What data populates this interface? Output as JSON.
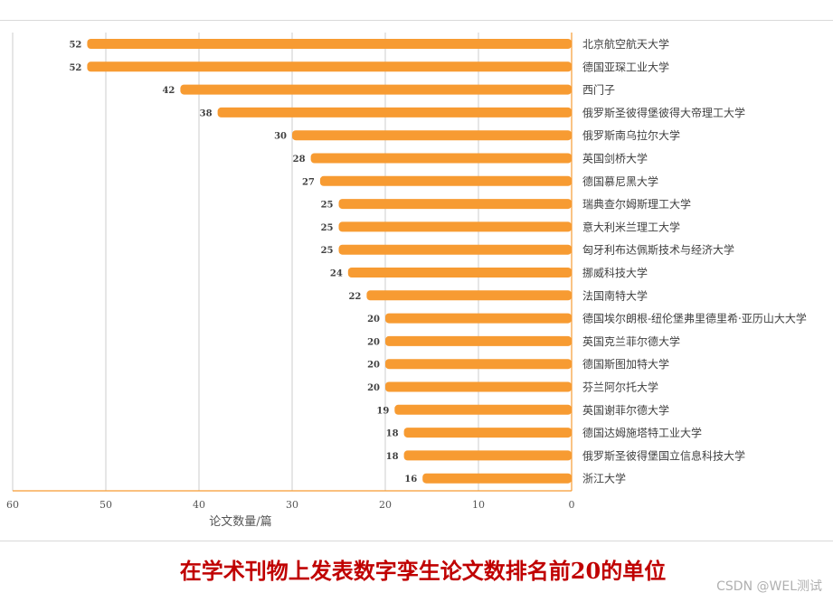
{
  "chart_data": {
    "type": "bar",
    "orientation": "horizontal",
    "title": "在学术刊物上发表数字孪生论文数排名前20的单位",
    "xlabel": "论文数量/篇",
    "ylabel": "",
    "xlim": [
      0,
      60
    ],
    "x_reversed": true,
    "xticks": [
      60,
      50,
      40,
      30,
      20,
      10,
      0
    ],
    "grid": true,
    "bar_color": "#f79b32",
    "categories": [
      "北京航空航天大学",
      "德国亚琛工业大学",
      "西门子",
      "俄罗斯圣彼得堡彼得大帝理工大学",
      "俄罗斯南乌拉尔大学",
      "英国剑桥大学",
      "德国慕尼黑大学",
      "瑞典查尔姆斯理工大学",
      "意大利米兰理工大学",
      "匈牙利布达佩斯技术与经济大学",
      "挪威科技大学",
      "法国南特大学",
      "德国埃尔朗根-纽伦堡弗里德里希·亚历山大大学",
      "英国克兰菲尔德大学",
      "德国斯图加特大学",
      "芬兰阿尔托大学",
      "英国谢菲尔德大学",
      "德国达姆施塔特工业大学",
      "俄罗斯圣彼得堡国立信息科技大学",
      "浙江大学"
    ],
    "values": [
      52,
      52,
      42,
      38,
      30,
      28,
      27,
      25,
      25,
      25,
      24,
      22,
      20,
      20,
      20,
      20,
      19,
      18,
      18,
      16
    ]
  },
  "caption": "在学术刊物上发表数字孪生论文数排名前20的单位",
  "watermark": "CSDN @WEL测试"
}
